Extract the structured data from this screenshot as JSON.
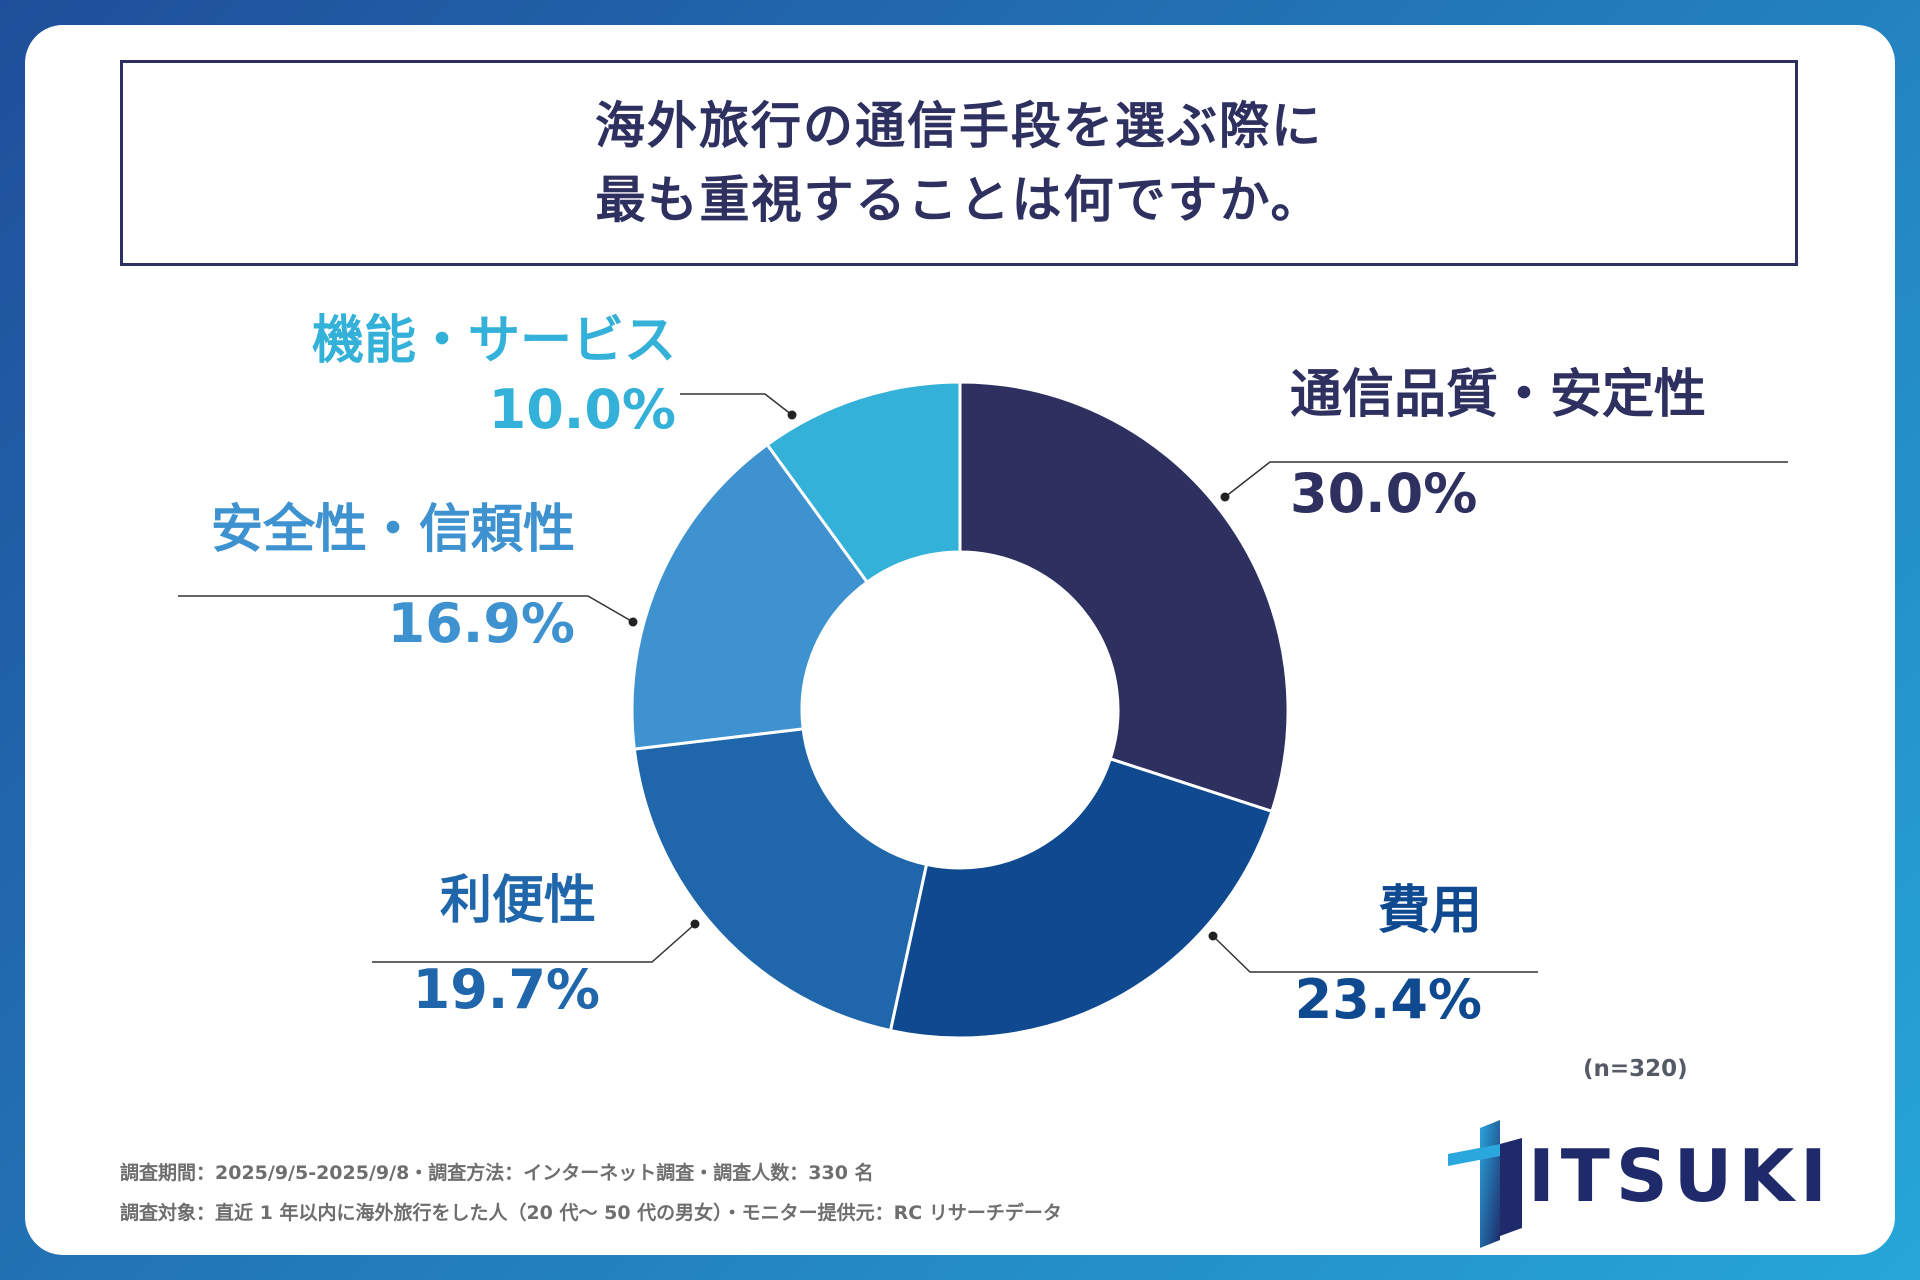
{
  "title": {
    "line1": "海外旅行の通信手段を選ぶ際に",
    "line2": "最も重視することは何ですか。"
  },
  "chart_data": {
    "type": "pie",
    "donut": true,
    "title": "海外旅行の通信手段を選ぶ際に最も重視することは何ですか。",
    "slices": [
      {
        "label": "通信品質・安定性",
        "value": 30.0,
        "display": "30.0%",
        "color": "#2e3060"
      },
      {
        "label": "費用",
        "value": 23.4,
        "display": "23.4%",
        "color": "#0f4a91"
      },
      {
        "label": "利便性",
        "value": 19.7,
        "display": "19.7%",
        "color": "#1f67aa"
      },
      {
        "label": "安全性・信頼性",
        "value": 16.9,
        "display": "16.9%",
        "color": "#3f92d0"
      },
      {
        "label": "機能・サービス",
        "value": 10.0,
        "display": "10.0%",
        "color": "#34b1d8"
      }
    ],
    "sample_size": "(n=320)"
  },
  "footer": {
    "line1": "調査期間：2025/9/5-2025/9/8・調査方法：インターネット調査・調査人数：330 名",
    "line2": "調査対象：直近 1 年以内に海外旅行をした人（20 代〜 50 代の男女）・モニター提供元：RC リサーチデータ"
  },
  "logo": {
    "text": "ITSUKI",
    "color": "#1e2a6a"
  }
}
